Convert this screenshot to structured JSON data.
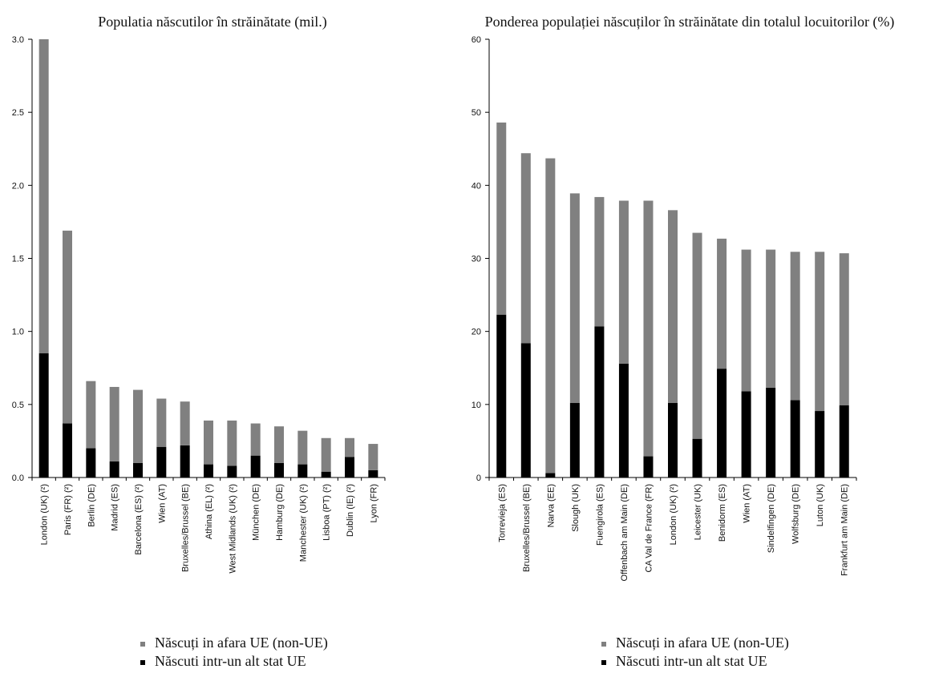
{
  "chart_data": [
    {
      "type": "bar",
      "stacked": true,
      "title": "Populatia născutilor în străinătate (mil.)",
      "categories": [
        "London (UK) (²)",
        "Paris (FR) (²)",
        "Berlin (DE)",
        "Madrid (ES)",
        "Barcelona (ES) (²)",
        "Wien (AT)",
        "Bruxelles/Brussel (BE)",
        "Athina (EL) (²)",
        "West Midlands (UK) (²)",
        "München (DE)",
        "Hamburg (DE)",
        "Manchester (UK) (²)",
        "Lisboa (PT) (²)",
        "Dublin (IE) (²)",
        "Lyon (FR)"
      ],
      "series": [
        {
          "name": "Născuti intr-un alt stat UE",
          "color": "#000000",
          "values": [
            0.85,
            0.37,
            0.2,
            0.11,
            0.1,
            0.21,
            0.22,
            0.09,
            0.08,
            0.15,
            0.1,
            0.09,
            0.04,
            0.14,
            0.05
          ]
        },
        {
          "name": "Născuți in afara UE (non-UE)",
          "color": "#808080",
          "values": [
            2.15,
            1.32,
            0.46,
            0.51,
            0.5,
            0.33,
            0.3,
            0.3,
            0.31,
            0.22,
            0.25,
            0.23,
            0.23,
            0.13,
            0.18
          ]
        }
      ],
      "ylim": [
        0,
        3.0
      ],
      "yticks": [
        "0.0",
        "0.5",
        "1.0",
        "1.5",
        "2.0",
        "2.5",
        "3.0"
      ],
      "legend": [
        {
          "label": "Născuți in afara UE (non-UE)",
          "color": "#808080"
        },
        {
          "label": "Născuti intr-un alt stat UE",
          "color": "#000000"
        }
      ],
      "legend_position": "bottom",
      "grid": false
    },
    {
      "type": "bar",
      "stacked": true,
      "title": "Ponderea populației născuților în străinătate din totalul locuitorilor (%)",
      "categories": [
        "Torrevieja (ES)",
        "Bruxelles/Brussel (BE)",
        "Narva (EE)",
        "Slough (UK)",
        "Fuengirola (ES)",
        "Offenbach am Main (DE)",
        "CA Val de France (FR)",
        "London (UK) (²)",
        "Leicester (UK)",
        "Benidorm (ES)",
        "Wien (AT)",
        "Sindelfingen (DE)",
        "Wolfsburg (DE)",
        "Luton (UK)",
        "Frankfurt am Main (DE)"
      ],
      "series": [
        {
          "name": "Născuti intr-un alt stat UE",
          "color": "#000000",
          "values": [
            22.3,
            18.4,
            0.6,
            10.2,
            20.7,
            15.6,
            2.9,
            10.2,
            5.3,
            14.9,
            11.8,
            12.3,
            10.6,
            9.1,
            9.9
          ]
        },
        {
          "name": "Născuți in afara UE (non-UE)",
          "color": "#808080",
          "values": [
            26.3,
            26.0,
            43.1,
            28.7,
            17.7,
            22.3,
            35.0,
            26.4,
            28.2,
            17.8,
            19.4,
            18.9,
            20.3,
            21.8,
            20.8
          ]
        }
      ],
      "ylim": [
        0,
        60
      ],
      "yticks": [
        "0",
        "10",
        "20",
        "30",
        "40",
        "50",
        "60"
      ],
      "legend": [
        {
          "label": "Născuți in afara UE (non-UE)",
          "color": "#808080"
        },
        {
          "label": "Născuti intr-un alt stat UE",
          "color": "#000000"
        }
      ],
      "legend_position": "bottom",
      "grid": false
    }
  ]
}
